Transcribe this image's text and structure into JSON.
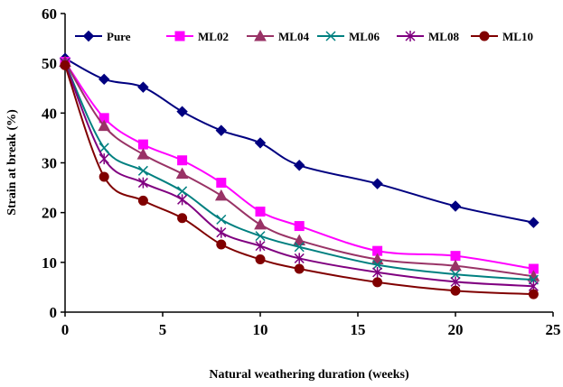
{
  "chart_data": {
    "type": "line",
    "xlabel": "Natural weathering duration (weeks)",
    "ylabel": "Strain at break  (%)",
    "xlim": [
      0,
      25
    ],
    "ylim": [
      0,
      60
    ],
    "xticks": [
      "0",
      "5",
      "10",
      "15",
      "20",
      "25"
    ],
    "yticks": [
      "0",
      "10",
      "20",
      "30",
      "40",
      "50",
      "60"
    ],
    "legend_position": "top",
    "grid": false,
    "x": [
      0,
      2,
      4,
      6,
      8,
      10,
      12,
      16,
      20,
      24
    ],
    "series": [
      {
        "name": "Pure",
        "color": "#000080",
        "marker": "diamond",
        "values": [
          51,
          46.8,
          45.2,
          40.3,
          36.5,
          34,
          29.5,
          25.8,
          21.3,
          18
        ]
      },
      {
        "name": "ML02",
        "color": "#FF00FF",
        "marker": "square",
        "values": [
          50.3,
          39,
          33.7,
          30.5,
          26,
          20.2,
          17.3,
          12.3,
          11.3,
          8.7
        ]
      },
      {
        "name": "ML04",
        "color": "#993366",
        "marker": "triangle",
        "values": [
          50.3,
          37.4,
          31.7,
          27.8,
          23.4,
          17.6,
          14.4,
          10.6,
          9.3,
          7.2
        ]
      },
      {
        "name": "ML06",
        "color": "#008080",
        "marker": "x",
        "values": [
          50.1,
          33,
          28.4,
          24.3,
          18.6,
          15.3,
          13.1,
          9.5,
          7.6,
          6.5
        ]
      },
      {
        "name": "ML08",
        "color": "#800080",
        "marker": "star",
        "values": [
          50,
          30.8,
          26,
          22.6,
          16,
          13.3,
          10.8,
          8,
          6.1,
          5.2
        ]
      },
      {
        "name": "ML10",
        "color": "#800000",
        "marker": "circle",
        "values": [
          49.6,
          27.2,
          22.4,
          18.9,
          13.6,
          10.6,
          8.7,
          6,
          4.3,
          3.6
        ]
      }
    ]
  }
}
